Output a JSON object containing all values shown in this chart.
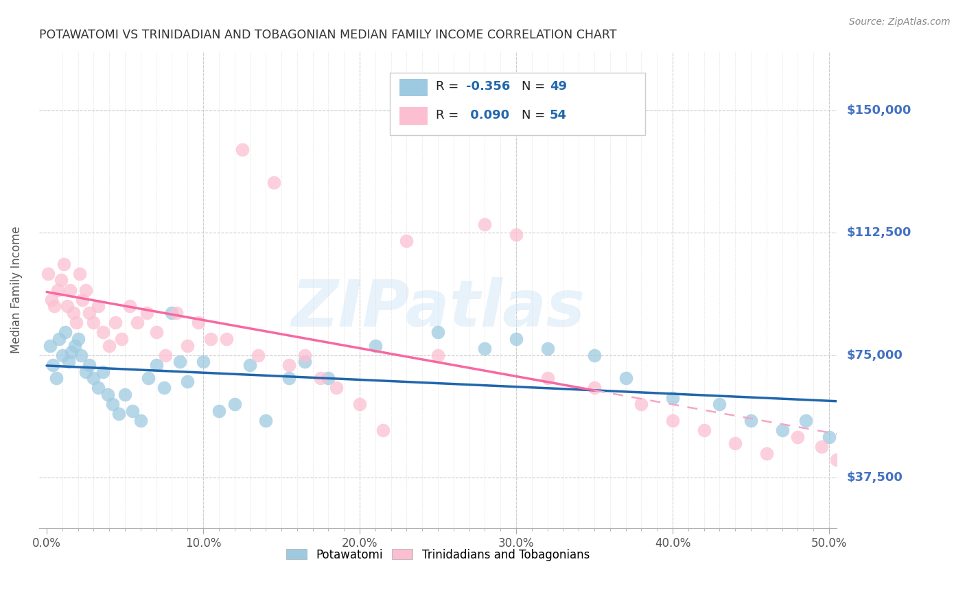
{
  "title": "POTAWATOMI VS TRINIDADIAN AND TOBAGONIAN MEDIAN FAMILY INCOME CORRELATION CHART",
  "source": "Source: ZipAtlas.com",
  "ylabel": "Median Family Income",
  "watermark": "ZIPatlas",
  "legend_label1": "Potawatomi",
  "legend_label2": "Trinidadians and Tobagonians",
  "blue_color": "#9ecae1",
  "pink_color": "#fcbfd2",
  "blue_line_color": "#2166ac",
  "pink_line_color": "#f768a1",
  "pink_dash_color": "#f4a6c4",
  "background_color": "#ffffff",
  "grid_color": "#cccccc",
  "title_color": "#333333",
  "right_label_color": "#4472c4",
  "ytick_labels": [
    "$37,500",
    "$75,000",
    "$112,500",
    "$150,000"
  ],
  "ytick_values": [
    37500,
    75000,
    112500,
    150000
  ],
  "xtick_labels": [
    "0.0%",
    "",
    "",
    "",
    "",
    "",
    "",
    "",
    "",
    "",
    "10.0%",
    "",
    "",
    "",
    "",
    "",
    "",
    "",
    "",
    "",
    "20.0%",
    "",
    "",
    "",
    "",
    "",
    "",
    "",
    "",
    "",
    "30.0%",
    "",
    "",
    "",
    "",
    "",
    "",
    "",
    "",
    "",
    "40.0%",
    "",
    "",
    "",
    "",
    "",
    "",
    "",
    "",
    "",
    "50.0%"
  ],
  "xtick_values": [
    0.0,
    0.01,
    0.02,
    0.03,
    0.04,
    0.05,
    0.06,
    0.07,
    0.08,
    0.09,
    0.1,
    0.11,
    0.12,
    0.13,
    0.14,
    0.15,
    0.16,
    0.17,
    0.18,
    0.19,
    0.2,
    0.21,
    0.22,
    0.23,
    0.24,
    0.25,
    0.26,
    0.27,
    0.28,
    0.29,
    0.3,
    0.31,
    0.32,
    0.33,
    0.34,
    0.35,
    0.36,
    0.37,
    0.38,
    0.39,
    0.4,
    0.41,
    0.42,
    0.43,
    0.44,
    0.45,
    0.46,
    0.47,
    0.48,
    0.49,
    0.5
  ],
  "major_xtick_values": [
    0.0,
    0.1,
    0.2,
    0.3,
    0.4,
    0.5
  ],
  "major_xtick_labels": [
    "0.0%",
    "10.0%",
    "20.0%",
    "30.0%",
    "40.0%",
    "50.0%"
  ],
  "xlim": [
    -0.005,
    0.505
  ],
  "ylim": [
    22000,
    168000
  ],
  "blue_x": [
    0.002,
    0.004,
    0.006,
    0.008,
    0.01,
    0.012,
    0.014,
    0.016,
    0.018,
    0.02,
    0.022,
    0.025,
    0.027,
    0.03,
    0.033,
    0.036,
    0.039,
    0.042,
    0.046,
    0.05,
    0.055,
    0.06,
    0.065,
    0.07,
    0.075,
    0.08,
    0.085,
    0.09,
    0.1,
    0.11,
    0.12,
    0.13,
    0.14,
    0.155,
    0.165,
    0.18,
    0.21,
    0.25,
    0.28,
    0.3,
    0.32,
    0.35,
    0.37,
    0.4,
    0.43,
    0.45,
    0.47,
    0.485,
    0.5
  ],
  "blue_y": [
    78000,
    72000,
    68000,
    80000,
    75000,
    82000,
    73000,
    76000,
    78000,
    80000,
    75000,
    70000,
    72000,
    68000,
    65000,
    70000,
    63000,
    60000,
    57000,
    63000,
    58000,
    55000,
    68000,
    72000,
    65000,
    88000,
    73000,
    67000,
    73000,
    58000,
    60000,
    72000,
    55000,
    68000,
    73000,
    68000,
    78000,
    82000,
    77000,
    80000,
    77000,
    75000,
    68000,
    62000,
    60000,
    55000,
    52000,
    55000,
    50000
  ],
  "pink_x": [
    0.001,
    0.003,
    0.005,
    0.007,
    0.009,
    0.011,
    0.013,
    0.015,
    0.017,
    0.019,
    0.021,
    0.023,
    0.025,
    0.027,
    0.03,
    0.033,
    0.036,
    0.04,
    0.044,
    0.048,
    0.053,
    0.058,
    0.064,
    0.07,
    0.076,
    0.083,
    0.09,
    0.097,
    0.105,
    0.115,
    0.125,
    0.135,
    0.145,
    0.155,
    0.165,
    0.175,
    0.185,
    0.2,
    0.215,
    0.23,
    0.25,
    0.28,
    0.3,
    0.32,
    0.35,
    0.38,
    0.4,
    0.42,
    0.44,
    0.46,
    0.48,
    0.495,
    0.505,
    0.51
  ],
  "pink_y": [
    100000,
    92000,
    90000,
    95000,
    98000,
    103000,
    90000,
    95000,
    88000,
    85000,
    100000,
    92000,
    95000,
    88000,
    85000,
    90000,
    82000,
    78000,
    85000,
    80000,
    90000,
    85000,
    88000,
    82000,
    75000,
    88000,
    78000,
    85000,
    80000,
    80000,
    138000,
    75000,
    128000,
    72000,
    75000,
    68000,
    65000,
    60000,
    52000,
    110000,
    75000,
    115000,
    112000,
    68000,
    65000,
    60000,
    55000,
    52000,
    48000,
    45000,
    50000,
    47000,
    43000,
    40000
  ]
}
